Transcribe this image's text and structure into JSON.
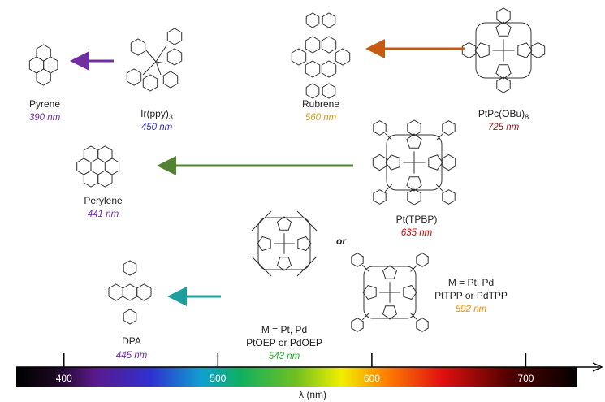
{
  "molecules": [
    {
      "name": "Pyrene",
      "wavelength": "390 nm"
    },
    {
      "name": "Ir(ppy)",
      "subscript": "3",
      "wavelength": "450 nm"
    },
    {
      "name": "Rubrene",
      "wavelength": "560 nm"
    },
    {
      "name": "PtPc(OBu)",
      "subscript": "8",
      "wavelength": "725 nm"
    },
    {
      "name": "Perylene",
      "wavelength": "441 nm"
    },
    {
      "name": "Pt(TPBP)",
      "wavelength": "635 nm"
    },
    {
      "name": "DPA",
      "wavelength": "445 nm"
    },
    {
      "metal": "M = Pt, Pd",
      "name": "PtOEP or PdOEP",
      "wavelength": "543 nm"
    },
    {
      "metal": "M = Pt, Pd",
      "name": "PtTPP or PdTPP",
      "wavelength": "592 nm"
    }
  ],
  "connector": "or",
  "spectrum": {
    "xlim": [
      369,
      733
    ],
    "xticks": [
      400,
      500,
      600,
      700
    ],
    "axis_label": "λ (nm)"
  }
}
